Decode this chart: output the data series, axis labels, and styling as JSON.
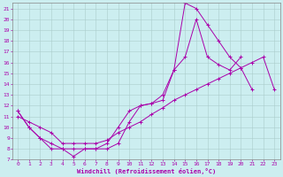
{
  "xlabel": "Windchill (Refroidissement éolien,°C)",
  "background_color": "#cceef0",
  "line_color": "#aa00aa",
  "grid_color": "#aacccc",
  "xlim": [
    -0.5,
    23.5
  ],
  "ylim": [
    7,
    21.5
  ],
  "xticks": [
    0,
    1,
    2,
    3,
    4,
    5,
    6,
    7,
    8,
    9,
    10,
    11,
    12,
    13,
    14,
    15,
    16,
    17,
    18,
    19,
    20,
    21,
    22,
    23
  ],
  "yticks": [
    7,
    8,
    9,
    10,
    11,
    12,
    13,
    14,
    15,
    16,
    17,
    18,
    19,
    20,
    21
  ],
  "line1_x": [
    0,
    1,
    2,
    3,
    4,
    5,
    6,
    7,
    8,
    9,
    10,
    11,
    12,
    13,
    14,
    15,
    16,
    17,
    18,
    19,
    20,
    21
  ],
  "line1_y": [
    11.5,
    10.0,
    9.0,
    8.0,
    8.0,
    7.3,
    8.0,
    8.0,
    8.0,
    8.5,
    10.5,
    12.0,
    12.2,
    13.0,
    15.3,
    21.5,
    21.0,
    19.5,
    18.0,
    16.5,
    15.5,
    13.5
  ],
  "line2_x": [
    0,
    1,
    2,
    3,
    4,
    5,
    6,
    7,
    8,
    9,
    10,
    11,
    12,
    13,
    14,
    15,
    16,
    17,
    18,
    19,
    20
  ],
  "line2_y": [
    11.5,
    10.0,
    9.0,
    8.5,
    8.0,
    8.0,
    8.0,
    8.0,
    8.5,
    10.0,
    11.5,
    12.0,
    12.2,
    12.5,
    15.3,
    16.5,
    20.0,
    16.5,
    15.8,
    15.3,
    16.5
  ],
  "line3_x": [
    0,
    1,
    2,
    3,
    4,
    5,
    6,
    7,
    8,
    9,
    10,
    11,
    12,
    13,
    14,
    15,
    16,
    17,
    18,
    19,
    20,
    21,
    22,
    23
  ],
  "line3_y": [
    11.0,
    10.5,
    10.0,
    9.5,
    8.5,
    8.5,
    8.5,
    8.5,
    8.8,
    9.5,
    10.0,
    10.5,
    11.2,
    11.8,
    12.5,
    13.0,
    13.5,
    14.0,
    14.5,
    15.0,
    15.5,
    16.0,
    16.5,
    13.5
  ]
}
